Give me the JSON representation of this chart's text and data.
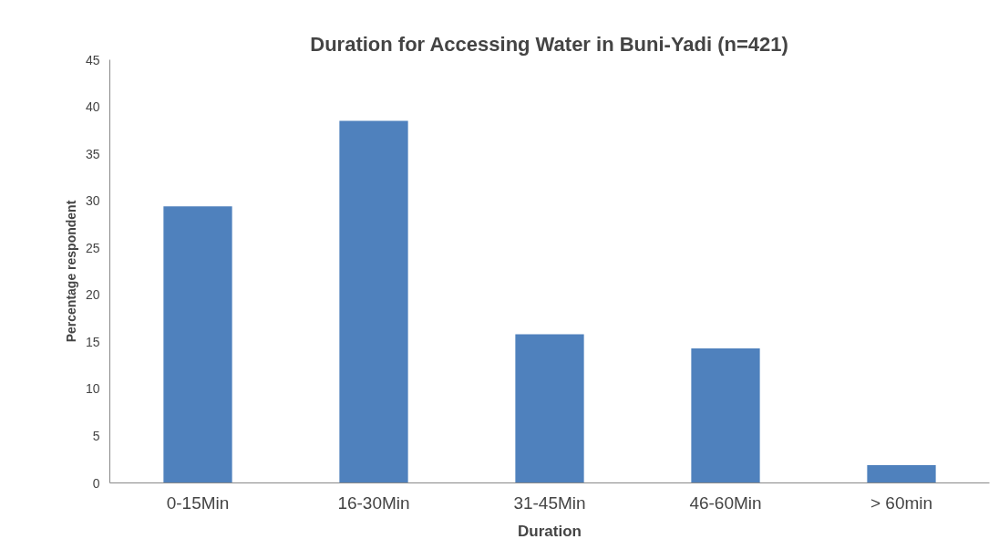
{
  "chart_data": {
    "type": "bar",
    "title": "Duration for Accessing Water in Buni-Yadi (n=421)",
    "xlabel": "Duration",
    "ylabel": "Percentage respondent",
    "categories": [
      "0-15Min",
      "16-30Min",
      "31-45Min",
      "46-60Min",
      "> 60min"
    ],
    "values": [
      29.4,
      38.5,
      15.8,
      14.3,
      1.9
    ],
    "color": "#4f81bd",
    "ylim": [
      0,
      45
    ],
    "yticks": [
      0,
      5,
      10,
      15,
      20,
      25,
      30,
      35,
      40,
      45
    ],
    "grid": false
  }
}
